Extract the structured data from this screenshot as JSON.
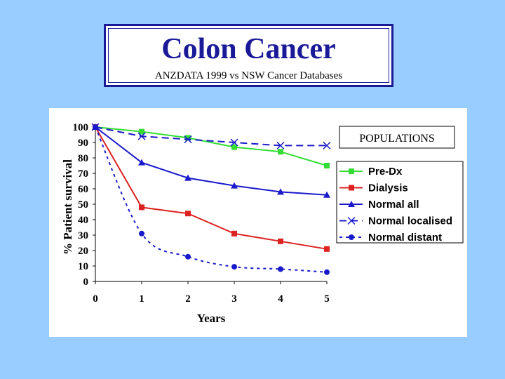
{
  "slide": {
    "title": "Colon Cancer",
    "subtitle": "ANZDATA 1999 vs NSW Cancer Databases"
  },
  "chart_data": {
    "type": "line",
    "title": "Colon Cancer",
    "subtitle": "ANZDATA 1999 vs NSW Cancer Databases",
    "xlabel": "Years",
    "ylabel": "% Patient survival",
    "x": [
      0,
      1,
      2,
      3,
      4,
      5
    ],
    "xlim": [
      0,
      5
    ],
    "ylim": [
      0,
      100
    ],
    "yticks": [
      0,
      10,
      20,
      30,
      40,
      50,
      60,
      70,
      80,
      90,
      100
    ],
    "xticks": [
      0,
      1,
      2,
      3,
      4,
      5
    ],
    "grid": false,
    "legend": {
      "title": "POPULATIONS",
      "placement": "right"
    },
    "series": [
      {
        "name": "Pre-Dx",
        "color": "#33dd33",
        "marker": "square",
        "dash": "solid",
        "values": [
          100,
          97,
          93,
          87,
          84,
          75
        ]
      },
      {
        "name": "Dialysis",
        "color": "#dd2222",
        "marker": "square",
        "dash": "solid",
        "values": [
          100,
          48,
          44,
          31,
          26,
          21
        ]
      },
      {
        "name": "Normal all",
        "color": "#1a1acc",
        "marker": "triangle",
        "dash": "solid",
        "values": [
          100,
          77,
          67,
          62,
          58,
          56
        ]
      },
      {
        "name": "Normal localised",
        "color": "#1a1acc",
        "marker": "x",
        "dash": "dashed",
        "values": [
          100,
          94,
          92,
          90,
          88,
          88
        ]
      },
      {
        "name": "Normal distant",
        "color": "#1a1acc",
        "marker": "circle",
        "dash": "dotted",
        "values": [
          100,
          31,
          16,
          9.5,
          8,
          6
        ]
      }
    ]
  }
}
